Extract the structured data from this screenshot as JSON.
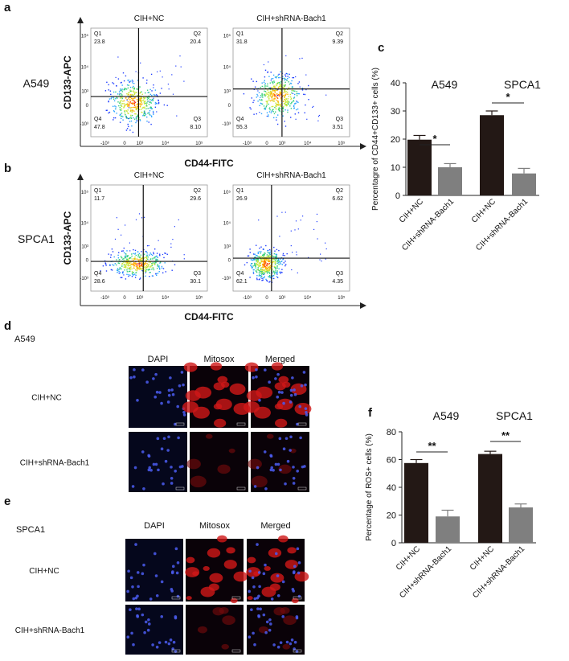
{
  "panel_labels": [
    "a",
    "b",
    "c",
    "d",
    "e",
    "f"
  ],
  "flow_cytometry": {
    "ticks": [
      "-10³",
      "0",
      "10³",
      "10⁴",
      "10⁵"
    ],
    "rows": [
      {
        "label": "A549",
        "y_axis_label": "CD133-APC",
        "x_axis_label": "CD44-FITC",
        "plots": [
          {
            "title": "CIH+NC",
            "quadrants": [
              {
                "name": "Q1",
                "value": "23.8"
              },
              {
                "name": "Q2",
                "value": "20.4"
              },
              {
                "name": "Q3",
                "value": "8.10"
              },
              {
                "name": "Q4",
                "value": "47.8"
              }
            ]
          },
          {
            "title": "CIH+shRNA-Bach1",
            "quadrants": [
              {
                "name": "Q1",
                "value": "31.8"
              },
              {
                "name": "Q2",
                "value": "9.39"
              },
              {
                "name": "Q3",
                "value": "3.51"
              },
              {
                "name": "Q4",
                "value": "55.3"
              }
            ]
          }
        ]
      },
      {
        "label": "SPCA1",
        "y_axis_label": "CD133-APC",
        "x_axis_label": "CD44-FITC",
        "plots": [
          {
            "title": "CIH+NC",
            "quadrants": [
              {
                "name": "Q1",
                "value": "11.7"
              },
              {
                "name": "Q2",
                "value": "29.6"
              },
              {
                "name": "Q3",
                "value": "30.1"
              },
              {
                "name": "Q4",
                "value": "28.6"
              }
            ]
          },
          {
            "title": "CIH+shRNA-Bach1",
            "quadrants": [
              {
                "name": "Q1",
                "value": "26.9"
              },
              {
                "name": "Q2",
                "value": "6.62"
              },
              {
                "name": "Q3",
                "value": "4.35"
              },
              {
                "name": "Q4",
                "value": "62.1"
              }
            ]
          }
        ]
      }
    ]
  },
  "microscopy": [
    {
      "cell_line": "A549",
      "columns": [
        "DAPI",
        "Mitosox",
        "Merged"
      ],
      "rows": [
        "CIH+NC",
        "CIH+shRNA-Bach1"
      ]
    },
    {
      "cell_line": "SPCA1",
      "columns": [
        "DAPI",
        "Mitosox",
        "Merged"
      ],
      "rows": [
        "CIH+NC",
        "CIH+shRNA-Bach1"
      ]
    }
  ],
  "chart_data": [
    {
      "type": "bar",
      "y_label": "Percentagre of CD44+CD133+ cells  (%)",
      "groups": [
        "A549",
        "SPCA1"
      ],
      "significance": [
        "*",
        "*"
      ],
      "categories": [
        "CIH+NC",
        "CIH+shRNA-Bach1",
        "CIH+NC",
        "CIH+shRNA-Bach1"
      ],
      "values": [
        19.8,
        10,
        28.5,
        7.8
      ],
      "errors": [
        1.5,
        1.3,
        1.5,
        1.8
      ],
      "colors": [
        "#231815",
        "#7f7f7f",
        "#231815",
        "#7f7f7f"
      ],
      "ylim": [
        0,
        40
      ],
      "yticks": [
        0,
        10,
        20,
        30,
        40
      ]
    },
    {
      "type": "bar",
      "y_label": "Percentage of ROS+ cells  (%)",
      "groups": [
        "A549",
        "SPCA1"
      ],
      "significance": [
        "**",
        "**"
      ],
      "categories": [
        "CIH+NC",
        "CIH+shRNA-Bach1",
        "CIH+NC",
        "CIH+shRNA-Bach1"
      ],
      "values": [
        57.5,
        19,
        64,
        25.5
      ],
      "errors": [
        2.5,
        4.5,
        2,
        2.5
      ],
      "colors": [
        "#231815",
        "#7f7f7f",
        "#231815",
        "#7f7f7f"
      ],
      "ylim": [
        0,
        80
      ],
      "yticks": [
        0,
        20,
        40,
        60,
        80
      ]
    }
  ]
}
